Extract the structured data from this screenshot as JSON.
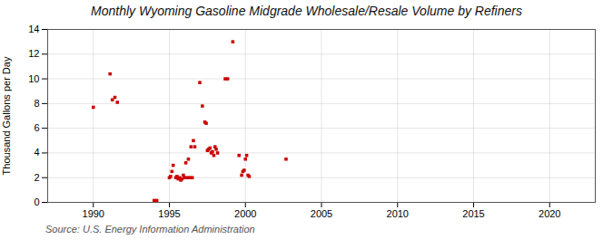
{
  "chart_data": {
    "type": "scatter",
    "title": "Monthly Wyoming Gasoline Midgrade Wholesale/Resale Volume by Refiners",
    "ylabel": "Thousand Gallons per Day",
    "source": "Source: U.S. Energy Information Administration",
    "xlim": [
      1987,
      2023
    ],
    "ylim": [
      0,
      14
    ],
    "xticks": [
      1990,
      1995,
      2000,
      2005,
      2010,
      2015,
      2020
    ],
    "yticks": [
      0,
      2,
      4,
      6,
      8,
      10,
      12,
      14
    ],
    "grid": true,
    "color": "#cc0000",
    "marker": "square",
    "x": [
      1990.0,
      1991.1,
      1991.25,
      1991.42,
      1991.58,
      1994.0,
      1994.17,
      1995.0,
      1995.08,
      1995.17,
      1995.25,
      1995.42,
      1995.5,
      1995.58,
      1995.67,
      1995.75,
      1995.83,
      1995.92,
      1996.0,
      1996.08,
      1996.17,
      1996.25,
      1996.33,
      1996.42,
      1996.5,
      1996.58,
      1996.67,
      1997.0,
      1997.17,
      1997.33,
      1997.42,
      1997.5,
      1997.58,
      1997.67,
      1997.75,
      1997.83,
      1997.92,
      1998.0,
      1998.08,
      1998.17,
      1998.67,
      1998.83,
      1999.17,
      1999.58,
      1999.75,
      1999.83,
      1999.92,
      2000.0,
      2000.08,
      2000.17,
      2000.25,
      2002.67
    ],
    "values": [
      7.7,
      10.4,
      8.3,
      8.5,
      8.1,
      0.15,
      0.15,
      2.0,
      2.1,
      2.5,
      3.0,
      2.0,
      2.1,
      1.9,
      2.0,
      1.8,
      1.9,
      2.2,
      2.0,
      3.2,
      2.0,
      3.5,
      2.0,
      4.5,
      2.0,
      5.0,
      4.5,
      9.7,
      7.8,
      6.5,
      6.4,
      4.2,
      4.3,
      4.4,
      4.0,
      4.1,
      3.8,
      4.5,
      4.3,
      4.0,
      10.0,
      10.0,
      13.0,
      3.8,
      2.2,
      2.5,
      2.6,
      3.5,
      3.8,
      2.2,
      2.1,
      3.5
    ]
  }
}
